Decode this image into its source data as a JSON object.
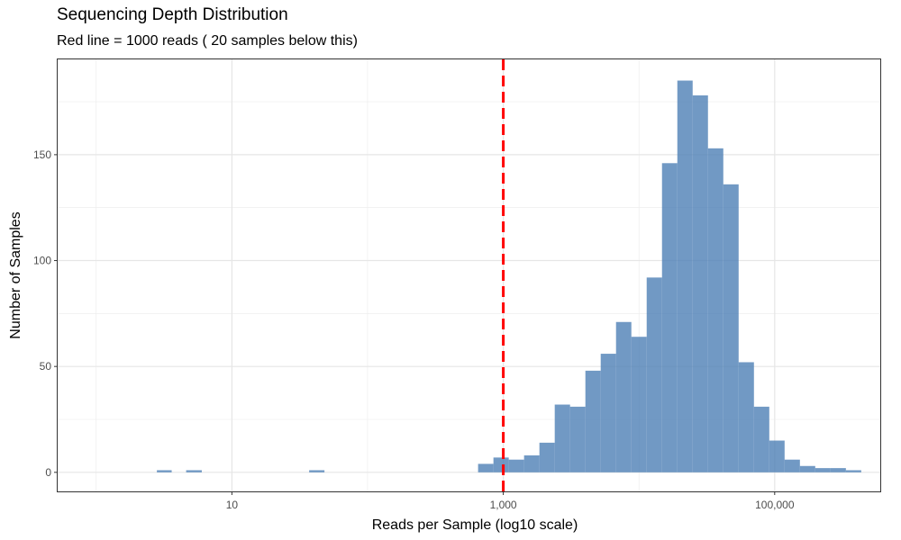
{
  "chart_data": {
    "type": "bar",
    "title": "Sequencing Depth Distribution",
    "subtitle": "Red line = 1000 reads ( 20 samples below this)",
    "xlabel": "Reads per Sample (log10 scale)",
    "ylabel": "Number of Samples",
    "x_scale": "log10",
    "xlim": [
      0.52,
      600000
    ],
    "ylim": [
      -9,
      195
    ],
    "x_ticks": [
      10,
      1000,
      100000
    ],
    "x_tick_labels": [
      "10",
      "1,000",
      "100,000"
    ],
    "y_ticks": [
      0,
      50,
      100,
      150
    ],
    "y_tick_labels": [
      "0",
      "50",
      "100",
      "150"
    ],
    "grid": true,
    "bar_color": "#4e7fb5",
    "threshold_line": {
      "x": 1000,
      "color": "#ff0000",
      "style": "dashed"
    },
    "bins": [
      {
        "x0": 2.8,
        "x1": 3.6,
        "count": 1
      },
      {
        "x0": 4.6,
        "x1": 6.0,
        "count": 1
      },
      {
        "x0": 37.1,
        "x1": 48.1,
        "count": 1
      },
      {
        "x0": 652,
        "x1": 846,
        "count": 4
      },
      {
        "x0": 846,
        "x1": 1097,
        "count": 7
      },
      {
        "x0": 1097,
        "x1": 1423,
        "count": 6
      },
      {
        "x0": 1423,
        "x1": 1846,
        "count": 8
      },
      {
        "x0": 1846,
        "x1": 2394,
        "count": 14
      },
      {
        "x0": 2394,
        "x1": 3105,
        "count": 32
      },
      {
        "x0": 3105,
        "x1": 4027,
        "count": 31
      },
      {
        "x0": 4027,
        "x1": 5223,
        "count": 48
      },
      {
        "x0": 5223,
        "x1": 6774,
        "count": 56
      },
      {
        "x0": 6774,
        "x1": 8786,
        "count": 71
      },
      {
        "x0": 8786,
        "x1": 11395,
        "count": 64
      },
      {
        "x0": 11395,
        "x1": 14779,
        "count": 92
      },
      {
        "x0": 14779,
        "x1": 19168,
        "count": 146
      },
      {
        "x0": 19168,
        "x1": 24860,
        "count": 185
      },
      {
        "x0": 24860,
        "x1": 32243,
        "count": 178
      },
      {
        "x0": 32243,
        "x1": 41818,
        "count": 153
      },
      {
        "x0": 41818,
        "x1": 54237,
        "count": 136
      },
      {
        "x0": 54237,
        "x1": 70343,
        "count": 52
      },
      {
        "x0": 70343,
        "x1": 91233,
        "count": 31
      },
      {
        "x0": 91233,
        "x1": 118326,
        "count": 15
      },
      {
        "x0": 118326,
        "x1": 153464,
        "count": 6
      },
      {
        "x0": 153464,
        "x1": 199037,
        "count": 3
      },
      {
        "x0": 199037,
        "x1": 258144,
        "count": 2
      },
      {
        "x0": 258144,
        "x1": 334804,
        "count": 2
      },
      {
        "x0": 334804,
        "x1": 434229,
        "count": 1
      }
    ]
  }
}
